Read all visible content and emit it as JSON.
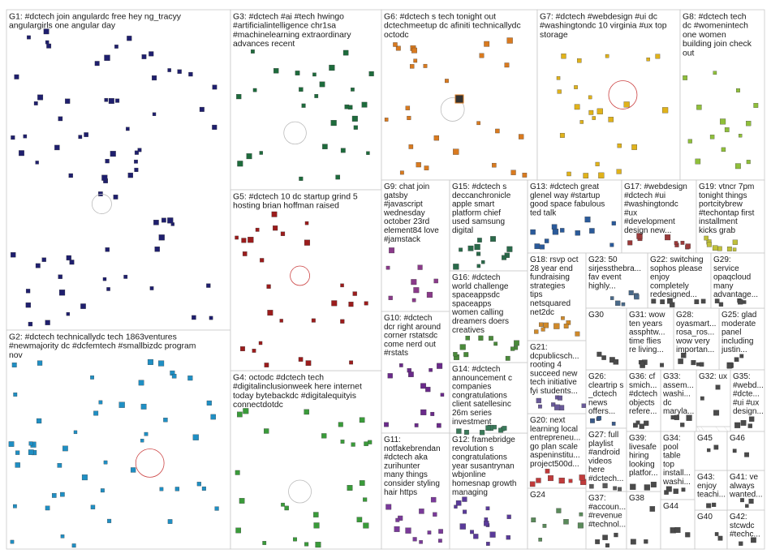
{
  "groups": [
    {
      "id": "G1",
      "lines": [
        "G1: #dctech join angulardc free hey ng_tracyy",
        "angulargirls one angular day"
      ],
      "color": "#1f1f6e"
    },
    {
      "id": "G2",
      "lines": [
        "G2: #dctech technicallydc tech 1863ventures",
        "#newmajority dc #dcfemtech #smallbizdc program",
        "nov"
      ],
      "color": "#1f8fc4"
    },
    {
      "id": "G3",
      "lines": [
        "G3: #dctech #ai #tech hwingo",
        "#artificialintelligence chr1sa",
        "#machinelearning extraordinary",
        "advances recent"
      ],
      "color": "#1e6b3c"
    },
    {
      "id": "G4",
      "lines": [
        "G4: octodc #dctech tech",
        "#digitalinclusionweek here internet",
        "today bytebackdc #digitalequityis",
        "connectdotdc"
      ],
      "color": "#3a9b3a"
    },
    {
      "id": "G5",
      "lines": [
        "G5: #dctech 10 dc startup grind 5",
        "hosting brian hoffman raised"
      ],
      "color": "#9b1c1c"
    },
    {
      "id": "G6",
      "lines": [
        "G6: #dctech s tech tonight out",
        "dctechmeetup dc afiniti technicallydc",
        "octodc"
      ],
      "color": "#d97a1f"
    },
    {
      "id": "G7",
      "lines": [
        "G7: #dctech #webdesign #ui dc",
        "#washingtondc 10 virginia #ux top",
        "storage"
      ],
      "color": "#e0b21a"
    },
    {
      "id": "G8",
      "lines": [
        "G8: #dctech tech",
        "dc #womenintech",
        "one women",
        "building join check",
        "out"
      ],
      "color": "#8fbf3a"
    },
    {
      "id": "G9",
      "lines": [
        "G9: chat join",
        "gatsby",
        "#javascript",
        "wednesday",
        "october 23rd",
        "element84 love",
        "#jamstack"
      ],
      "color": "#8a3a8a"
    },
    {
      "id": "G10",
      "lines": [
        "G10: #dctech",
        "dcr right around",
        "corner rstatsdc",
        "come nerd out",
        "#rstats"
      ],
      "color": "#6a2a8a"
    },
    {
      "id": "G11",
      "lines": [
        "G11:",
        "notfakebrendan",
        "#dctech aka",
        "zurihunter",
        "many things",
        "consider styling",
        "hair https"
      ],
      "color": "#7a3a9a"
    },
    {
      "id": "G12",
      "lines": [
        "G12: framebridge",
        "revolution s",
        "congratulations",
        "year susantrynan",
        "wbjonline",
        "homesnap growth",
        "managing"
      ],
      "color": "#5a3a9a"
    },
    {
      "id": "G13",
      "lines": [
        "G13: #dctech great",
        "glenel way #startup",
        "good space fabulous",
        "ted talk"
      ],
      "color": "#2a5a9a"
    },
    {
      "id": "G14",
      "lines": [
        "G14: #dctech",
        "announcement c",
        "companies",
        "congratulations",
        "client satellesinc",
        "26m series",
        "investment"
      ],
      "color": "#3a7a5a"
    },
    {
      "id": "G15",
      "lines": [
        "G15: #dctech s",
        "deccanchronicle",
        "apple smart",
        "platform chief",
        "used samsung",
        "digital"
      ],
      "color": "#2a6a4a"
    },
    {
      "id": "G16",
      "lines": [
        "G16: #dctech",
        "world challenge",
        "spaceappsdc",
        "spaceapps",
        "women calling",
        "dreamers doers",
        "creatives"
      ],
      "color": "#4a8a3a"
    },
    {
      "id": "G17",
      "lines": [
        "G17: #webdesign",
        "#dctech #ui",
        "#washingtondc",
        "#ux",
        "#development",
        "design new..."
      ],
      "color": "#9a3a3a"
    },
    {
      "id": "G18",
      "lines": [
        "G18: rsvp oct",
        "28 year end",
        "fundraising",
        "strategies",
        "tips",
        "netsquared",
        "net2dc"
      ],
      "color": "#d08a2a"
    },
    {
      "id": "G19",
      "lines": [
        "G19: vtncr 7pm",
        "tonight things",
        "portcitybrew",
        "#techontap first",
        "installment",
        "kicks grab"
      ],
      "color": "#c0c03a"
    },
    {
      "id": "G20",
      "lines": [
        "G20: next",
        "learning local",
        "entrepreneu...",
        "go plan scale",
        "aspeninstitu...",
        "project500d..."
      ],
      "color": "#c03a3a"
    },
    {
      "id": "G21",
      "lines": [
        "G21:",
        "dcpublicsch...",
        "rooting 4",
        "succeed new",
        "tech initiative",
        "fyi students..."
      ],
      "color": "#6a5a9a"
    },
    {
      "id": "G22",
      "lines": [
        "G22: switching",
        "sophos please",
        "enjoy",
        "completely",
        "redesigned..."
      ],
      "color": "#4a4a4a"
    },
    {
      "id": "G23",
      "lines": [
        "G23: 50",
        "sirjessthebra...",
        "fav event",
        "highly..."
      ],
      "color": "#4a6a8a"
    },
    {
      "id": "G24",
      "lines": [
        "G24"
      ],
      "color": "#5a8a5a"
    },
    {
      "id": "G25",
      "lines": [
        "G25: glad",
        "moderate",
        "panel",
        "including",
        "justin..."
      ],
      "color": "#4a4a4a"
    },
    {
      "id": "G26",
      "lines": [
        "G26:",
        "cleartrip s",
        "_dctech",
        "news",
        "offers..."
      ],
      "color": "#3a5a8a"
    },
    {
      "id": "G27",
      "lines": [
        "G27: full",
        "playlist",
        "#android",
        "videos",
        "here",
        "#dctech..."
      ],
      "color": "#5a5a5a"
    },
    {
      "id": "G28",
      "lines": [
        "G28:",
        "oyasmart...",
        "rosa_ros...",
        "wow very",
        "importan..."
      ],
      "color": "#4a4a4a"
    },
    {
      "id": "G29",
      "lines": [
        "G29:",
        "service",
        "opaqcloud",
        "many",
        "advantage..."
      ],
      "color": "#4a4a4a"
    },
    {
      "id": "G30",
      "lines": [
        "G30"
      ],
      "color": "#4a4a4a"
    },
    {
      "id": "G31",
      "lines": [
        "G31: wow",
        "ten years",
        "assphtw...",
        "time flies",
        "re living..."
      ],
      "color": "#4a4a4a"
    },
    {
      "id": "G32",
      "lines": [
        "G32: ux"
      ],
      "color": "#4a4a4a"
    },
    {
      "id": "G33",
      "lines": [
        "G33:",
        "assem...",
        "washi...",
        "dc",
        "maryla..."
      ],
      "color": "#4a4a4a"
    },
    {
      "id": "G34",
      "lines": [
        "G34:",
        "pool",
        "table",
        "top",
        "install...",
        "washi..."
      ],
      "color": "#4a4a4a"
    },
    {
      "id": "G35",
      "lines": [
        "G35:",
        "#webd...",
        "#dcte...",
        "#ui #ux",
        "design..."
      ],
      "color": "#4a4a4a"
    },
    {
      "id": "G36",
      "lines": [
        "G36: cf",
        "smich...",
        "#dctech",
        "objects",
        "refere..."
      ],
      "color": "#4a4a4a"
    },
    {
      "id": "G37",
      "lines": [
        "G37:",
        "#accoun...",
        "#revenue",
        "#technol..."
      ],
      "color": "#4a4a4a"
    },
    {
      "id": "G38",
      "lines": [
        "G38"
      ],
      "color": "#4a4a4a"
    },
    {
      "id": "G39",
      "lines": [
        "G39:",
        "livesafe",
        "hiring",
        "looking",
        "platfor..."
      ],
      "color": "#4a4a4a"
    },
    {
      "id": "G40",
      "lines": [
        "G40"
      ],
      "color": "#4a4a4a"
    },
    {
      "id": "G41",
      "lines": [
        "G41: ve",
        "always",
        "wanted..."
      ],
      "color": "#4a4a4a"
    },
    {
      "id": "G42",
      "lines": [
        "G42:",
        "stcwdc",
        "#techc..."
      ],
      "color": "#4a4a4a"
    },
    {
      "id": "G43",
      "lines": [
        "G43:",
        "enjoy",
        "teachi..."
      ],
      "color": "#4a4a4a"
    },
    {
      "id": "G44",
      "lines": [
        "G44"
      ],
      "color": "#4a4a4a"
    },
    {
      "id": "G45",
      "lines": [
        "G45"
      ],
      "color": "#4a4a4a"
    },
    {
      "id": "G46",
      "lines": [
        "G46"
      ],
      "color": "#4a4a4a"
    }
  ]
}
